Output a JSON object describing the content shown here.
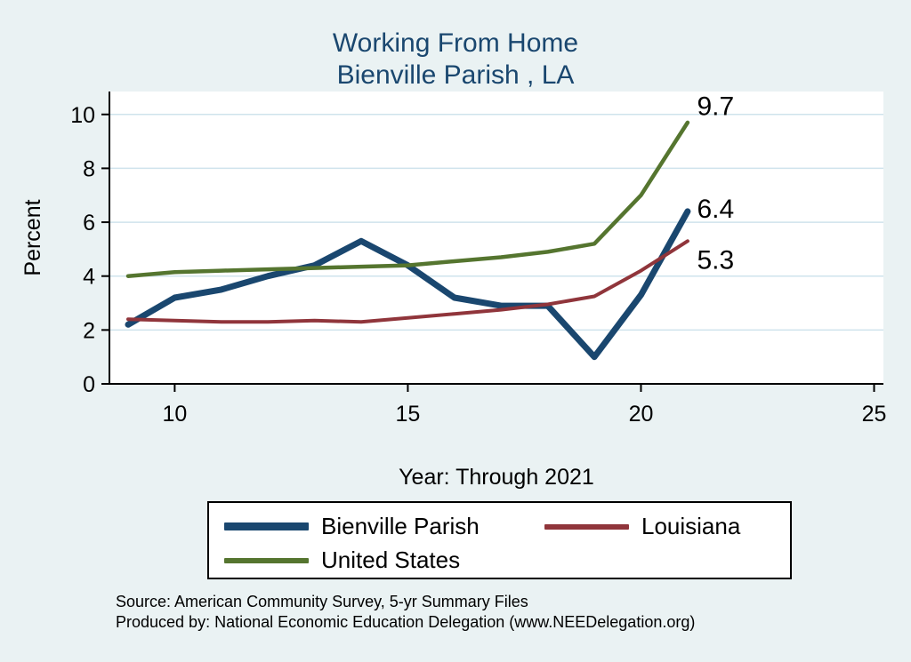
{
  "title": {
    "line1": "Working From Home",
    "line2": "Bienville Parish , LA"
  },
  "chart_data": {
    "type": "line",
    "x": [
      9,
      10,
      11,
      12,
      13,
      14,
      15,
      16,
      17,
      18,
      19,
      20,
      21
    ],
    "series": [
      {
        "name": "Bienville Parish",
        "color": "#1a476f",
        "width": 7,
        "values": [
          2.2,
          3.2,
          3.5,
          4.0,
          4.4,
          5.3,
          4.4,
          3.2,
          2.9,
          2.9,
          1.0,
          3.3,
          6.4
        ]
      },
      {
        "name": "Louisiana",
        "color": "#90353b",
        "width": 4,
        "values": [
          2.4,
          2.35,
          2.3,
          2.3,
          2.35,
          2.3,
          2.45,
          2.6,
          2.75,
          2.95,
          3.25,
          4.2,
          5.3
        ]
      },
      {
        "name": "United States",
        "color": "#55752f",
        "width": 4.5,
        "values": [
          4.0,
          4.15,
          4.2,
          4.25,
          4.3,
          4.35,
          4.4,
          4.55,
          4.7,
          4.9,
          5.2,
          7.0,
          9.7
        ]
      }
    ],
    "title": "Working From Home Bienville Parish , LA",
    "xlabel": "Year: Through 2021",
    "ylabel": "Percent",
    "xlim": [
      8.6,
      25.2
    ],
    "ylim": [
      0,
      10.85
    ],
    "xticks": [
      10,
      15,
      20,
      25
    ],
    "yticks": [
      0,
      2,
      4,
      6,
      8,
      10
    ],
    "grid": "horizontal",
    "legend_position": "bottom",
    "annotations": [
      {
        "text": "9.7",
        "x": 21.6,
        "y": 10.3
      },
      {
        "text": "6.4",
        "x": 21.6,
        "y": 6.5
      },
      {
        "text": "5.3",
        "x": 21.6,
        "y": 4.6
      }
    ]
  },
  "legend": {
    "items": [
      {
        "label": "Bienville Parish"
      },
      {
        "label": "Louisiana"
      },
      {
        "label": "United States"
      }
    ]
  },
  "footer": {
    "source": "Source: American Community Survey, 5-yr Summary Files",
    "produced_by": "Produced by: National Economic Education Delegation (www.NEEDelegation.org)"
  },
  "colors": {
    "background": "#eaf2f3",
    "plot_bg": "#ffffff",
    "grid": "#cfe3ec",
    "axis": "#000000",
    "title": "#1a476f"
  }
}
